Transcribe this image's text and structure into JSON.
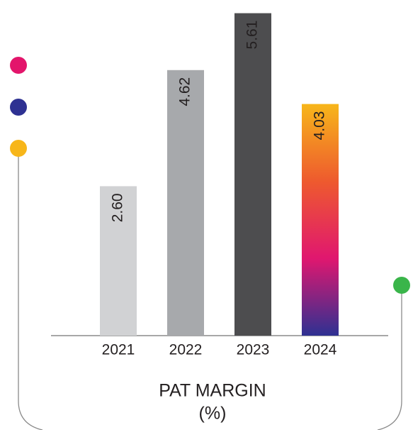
{
  "chart_data": {
    "type": "bar",
    "title": "PAT MARGIN",
    "subtitle": "(%)",
    "categories": [
      "2021",
      "2022",
      "2023",
      "2024"
    ],
    "values": [
      2.6,
      4.62,
      5.61,
      4.03
    ],
    "value_labels": [
      "2.60",
      "4.62",
      "5.61",
      "4.03"
    ],
    "colors": [
      "#d1d2d4",
      "#a7a9ac",
      "#4d4d4f",
      "url(#grad2024)"
    ],
    "gradient": [
      "#f7b61a",
      "#ee5a2e",
      "#e0176f",
      "#2e3192"
    ],
    "label_colors": [
      "#231f20",
      "#231f20",
      "#ffffff",
      "#ffffff"
    ]
  }
}
